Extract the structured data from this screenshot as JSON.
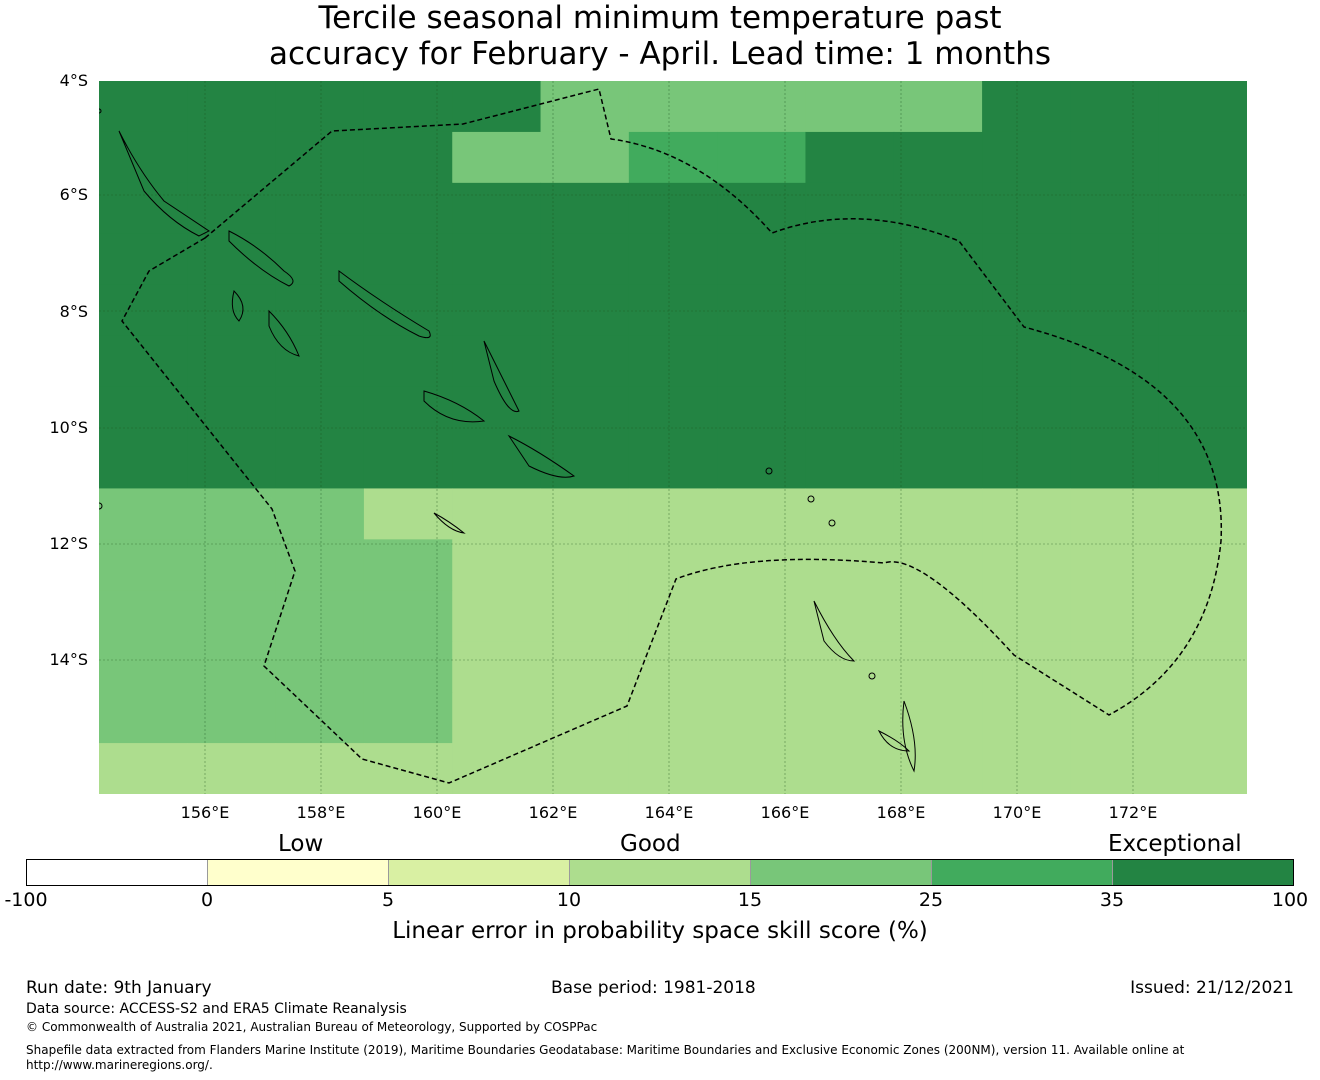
{
  "title": {
    "line1": "Tercile seasonal minimum temperature past",
    "line2": "accuracy for February - April. Lead time: 1 months"
  },
  "map": {
    "lat_labels": [
      "4°S",
      "6°S",
      "8°S",
      "10°S",
      "12°S",
      "14°S"
    ],
    "lon_labels": [
      "156°E",
      "158°E",
      "160°E",
      "162°E",
      "164°E",
      "166°E",
      "168°E",
      "170°E",
      "172°E"
    ],
    "region_lon_range": [
      154.2,
      174.0
    ],
    "region_lat_range": [
      -4.0,
      -16.3
    ],
    "boundary_style": "dashed black EEZ boundary lines",
    "grid": true,
    "skill_grid_rows_north_to_south": [
      "6666644444666",
      "6666445566666",
      "6666666666666",
      "6666666666666",
      "6666666666666",
      "6666666666666",
      "6666666666666",
      "6666666666666",
      "4443333333333",
      "4444333333333",
      "4444333333333",
      "4444333333333",
      "4444333333333",
      "3333333333333"
    ]
  },
  "legend": {
    "categories": [
      "Low",
      "Good",
      "Exceptional"
    ],
    "ticks": [
      "-100",
      "0",
      "5",
      "10",
      "15",
      "25",
      "35",
      "100"
    ],
    "colors": [
      "#ffffff",
      "#ffffcc",
      "#d9f0a3",
      "#addd8e",
      "#78c679",
      "#41ab5d",
      "#238443"
    ],
    "label": "Linear error in probability space skill score (%)"
  },
  "footer": {
    "run_date": "Run date: 9th January",
    "base_period": "Base period: 1981-2018",
    "issued": "Issued: 21/12/2021",
    "data_source": "Data source: ACCESS-S2 and ERA5 Climate Reanalysis",
    "copyright": "© Commonwealth of Australia 2021, Australian Bureau of Meteorology, Supported by COSPPac",
    "shapefile_line1": "Shapefile data extracted from Flanders Marine Institute (2019), Maritime Boundaries Geodatabase: Maritime Boundaries and Exclusive Economic Zones (200NM), version 11. Available online at",
    "shapefile_line2": "http://www.marineregions.org/."
  }
}
